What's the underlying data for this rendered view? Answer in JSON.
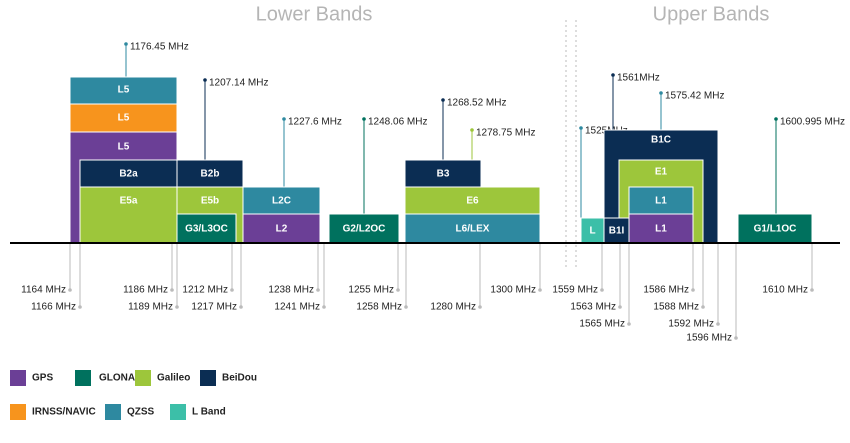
{
  "titles": {
    "lower": "Lower Bands",
    "upper": "Upper Bands"
  },
  "blocks": [
    "L5",
    "L5",
    "L5",
    "B2a",
    "B2b",
    "E5a",
    "E5b",
    "G3/L3OC",
    "L2C",
    "L2",
    "G2/L2OC",
    "B3",
    "E6",
    "L6/LEX",
    "B1C",
    "E1",
    "L1",
    "L1",
    "B1I",
    "L",
    "G1/L1OC"
  ],
  "center_frequencies": [
    "1176.45 MHz",
    "1207.14 MHz",
    "1227.6 MHz",
    "1248.06 MHz",
    "1268.52 MHz",
    "1278.75 MHz",
    "1525MHz",
    "1561MHz",
    "1575.42 MHz",
    "1600.995 MHz"
  ],
  "edge_frequencies": [
    "1164 MHz",
    "1166 MHz",
    "1186 MHz",
    "1189 MHz",
    "1212 MHz",
    "1217 MHz",
    "1238 MHz",
    "1241 MHz",
    "1255 MHz",
    "1258 MHz",
    "1280 MHz",
    "1300 MHz",
    "1559 MHz",
    "1563 MHz",
    "1565 MHz",
    "1586 MHz",
    "1588 MHz",
    "1592 MHz",
    "1596 MHz",
    "1610 MHz"
  ],
  "legend": [
    "GPS",
    "GLONASS",
    "Galileo",
    "BeiDou",
    "IRNSS/NAVIC",
    "QZSS",
    "L Band"
  ]
}
